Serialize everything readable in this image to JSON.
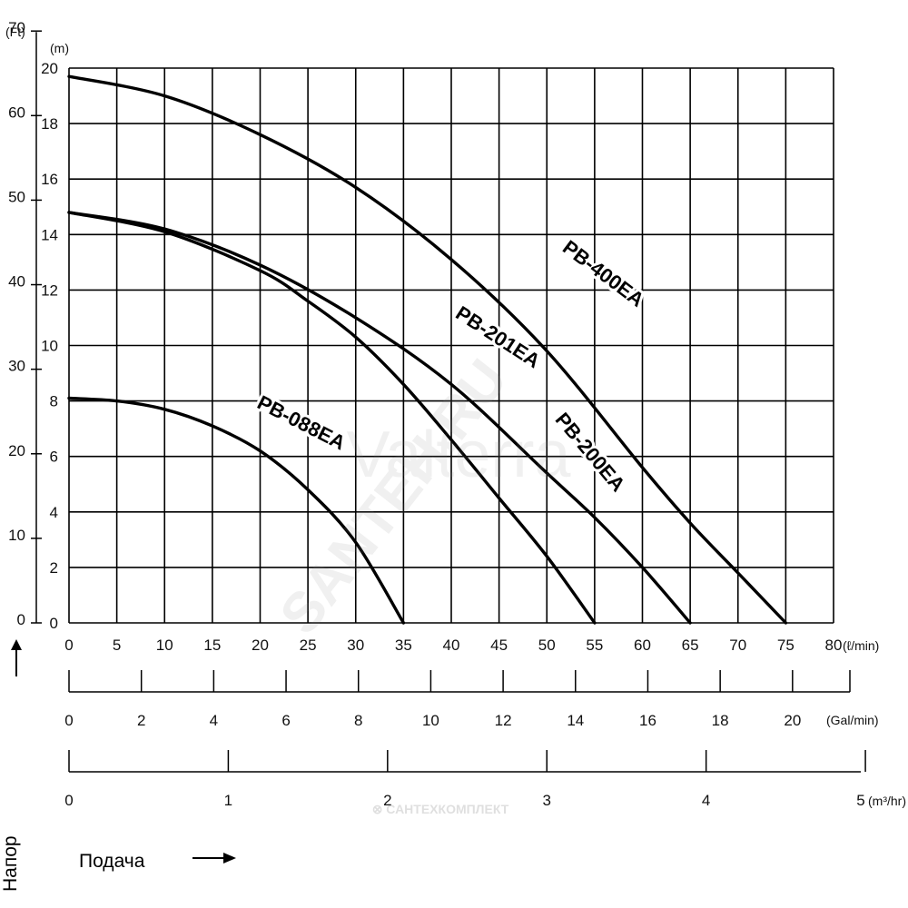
{
  "chart_data": {
    "type": "line",
    "y_units": {
      "ft": "(Ft)",
      "m": "(m)"
    },
    "x_units": {
      "lpm": "(ℓ/min)",
      "gpm": "(Gal/min)",
      "m3h": "(m³/hr)"
    },
    "y_ft_ticks": [
      "0",
      "10",
      "20",
      "30",
      "40",
      "50",
      "60",
      "70"
    ],
    "y_m_ticks": [
      "0",
      "2",
      "4",
      "6",
      "8",
      "10",
      "12",
      "14",
      "16",
      "18",
      "20"
    ],
    "x_lpm_ticks": [
      "0",
      "5",
      "10",
      "15",
      "20",
      "25",
      "30",
      "35",
      "40",
      "45",
      "50",
      "55",
      "60",
      "65",
      "70",
      "75",
      "80"
    ],
    "x_gpm_ticks": [
      "0",
      "2",
      "4",
      "6",
      "8",
      "10",
      "12",
      "14",
      "16",
      "18",
      "20"
    ],
    "x_m3h_ticks": [
      "0",
      "1",
      "2",
      "3",
      "4",
      "5"
    ],
    "xlim": [
      0,
      80
    ],
    "ylim": [
      0,
      20
    ],
    "grid": true,
    "series": [
      {
        "name": "PB-400EA",
        "x": [
          0,
          10,
          20,
          30,
          40,
          50,
          60,
          65,
          70,
          75
        ],
        "y": [
          19.7,
          19.0,
          17.6,
          15.7,
          13.1,
          9.8,
          5.6,
          3.6,
          1.8,
          0
        ]
      },
      {
        "name": "PB-201EA",
        "x": [
          0,
          10,
          20,
          30,
          40,
          50,
          55,
          60,
          65
        ],
        "y": [
          14.8,
          14.2,
          12.9,
          11.0,
          8.6,
          5.4,
          3.8,
          2.0,
          0
        ]
      },
      {
        "name": "PB-200EA",
        "x": [
          0,
          10,
          20,
          25,
          30,
          35,
          40,
          45,
          50,
          55
        ],
        "y": [
          14.8,
          14.1,
          12.7,
          11.6,
          10.3,
          8.6,
          6.6,
          4.5,
          2.4,
          0
        ]
      },
      {
        "name": "PB-088EA",
        "x": [
          0,
          5,
          10,
          15,
          20,
          25,
          30,
          35
        ],
        "y": [
          8.1,
          8.0,
          7.7,
          7.1,
          6.2,
          4.8,
          2.9,
          0
        ]
      }
    ],
    "axis_labels": {
      "y": "Напор",
      "x": "Подача"
    }
  }
}
